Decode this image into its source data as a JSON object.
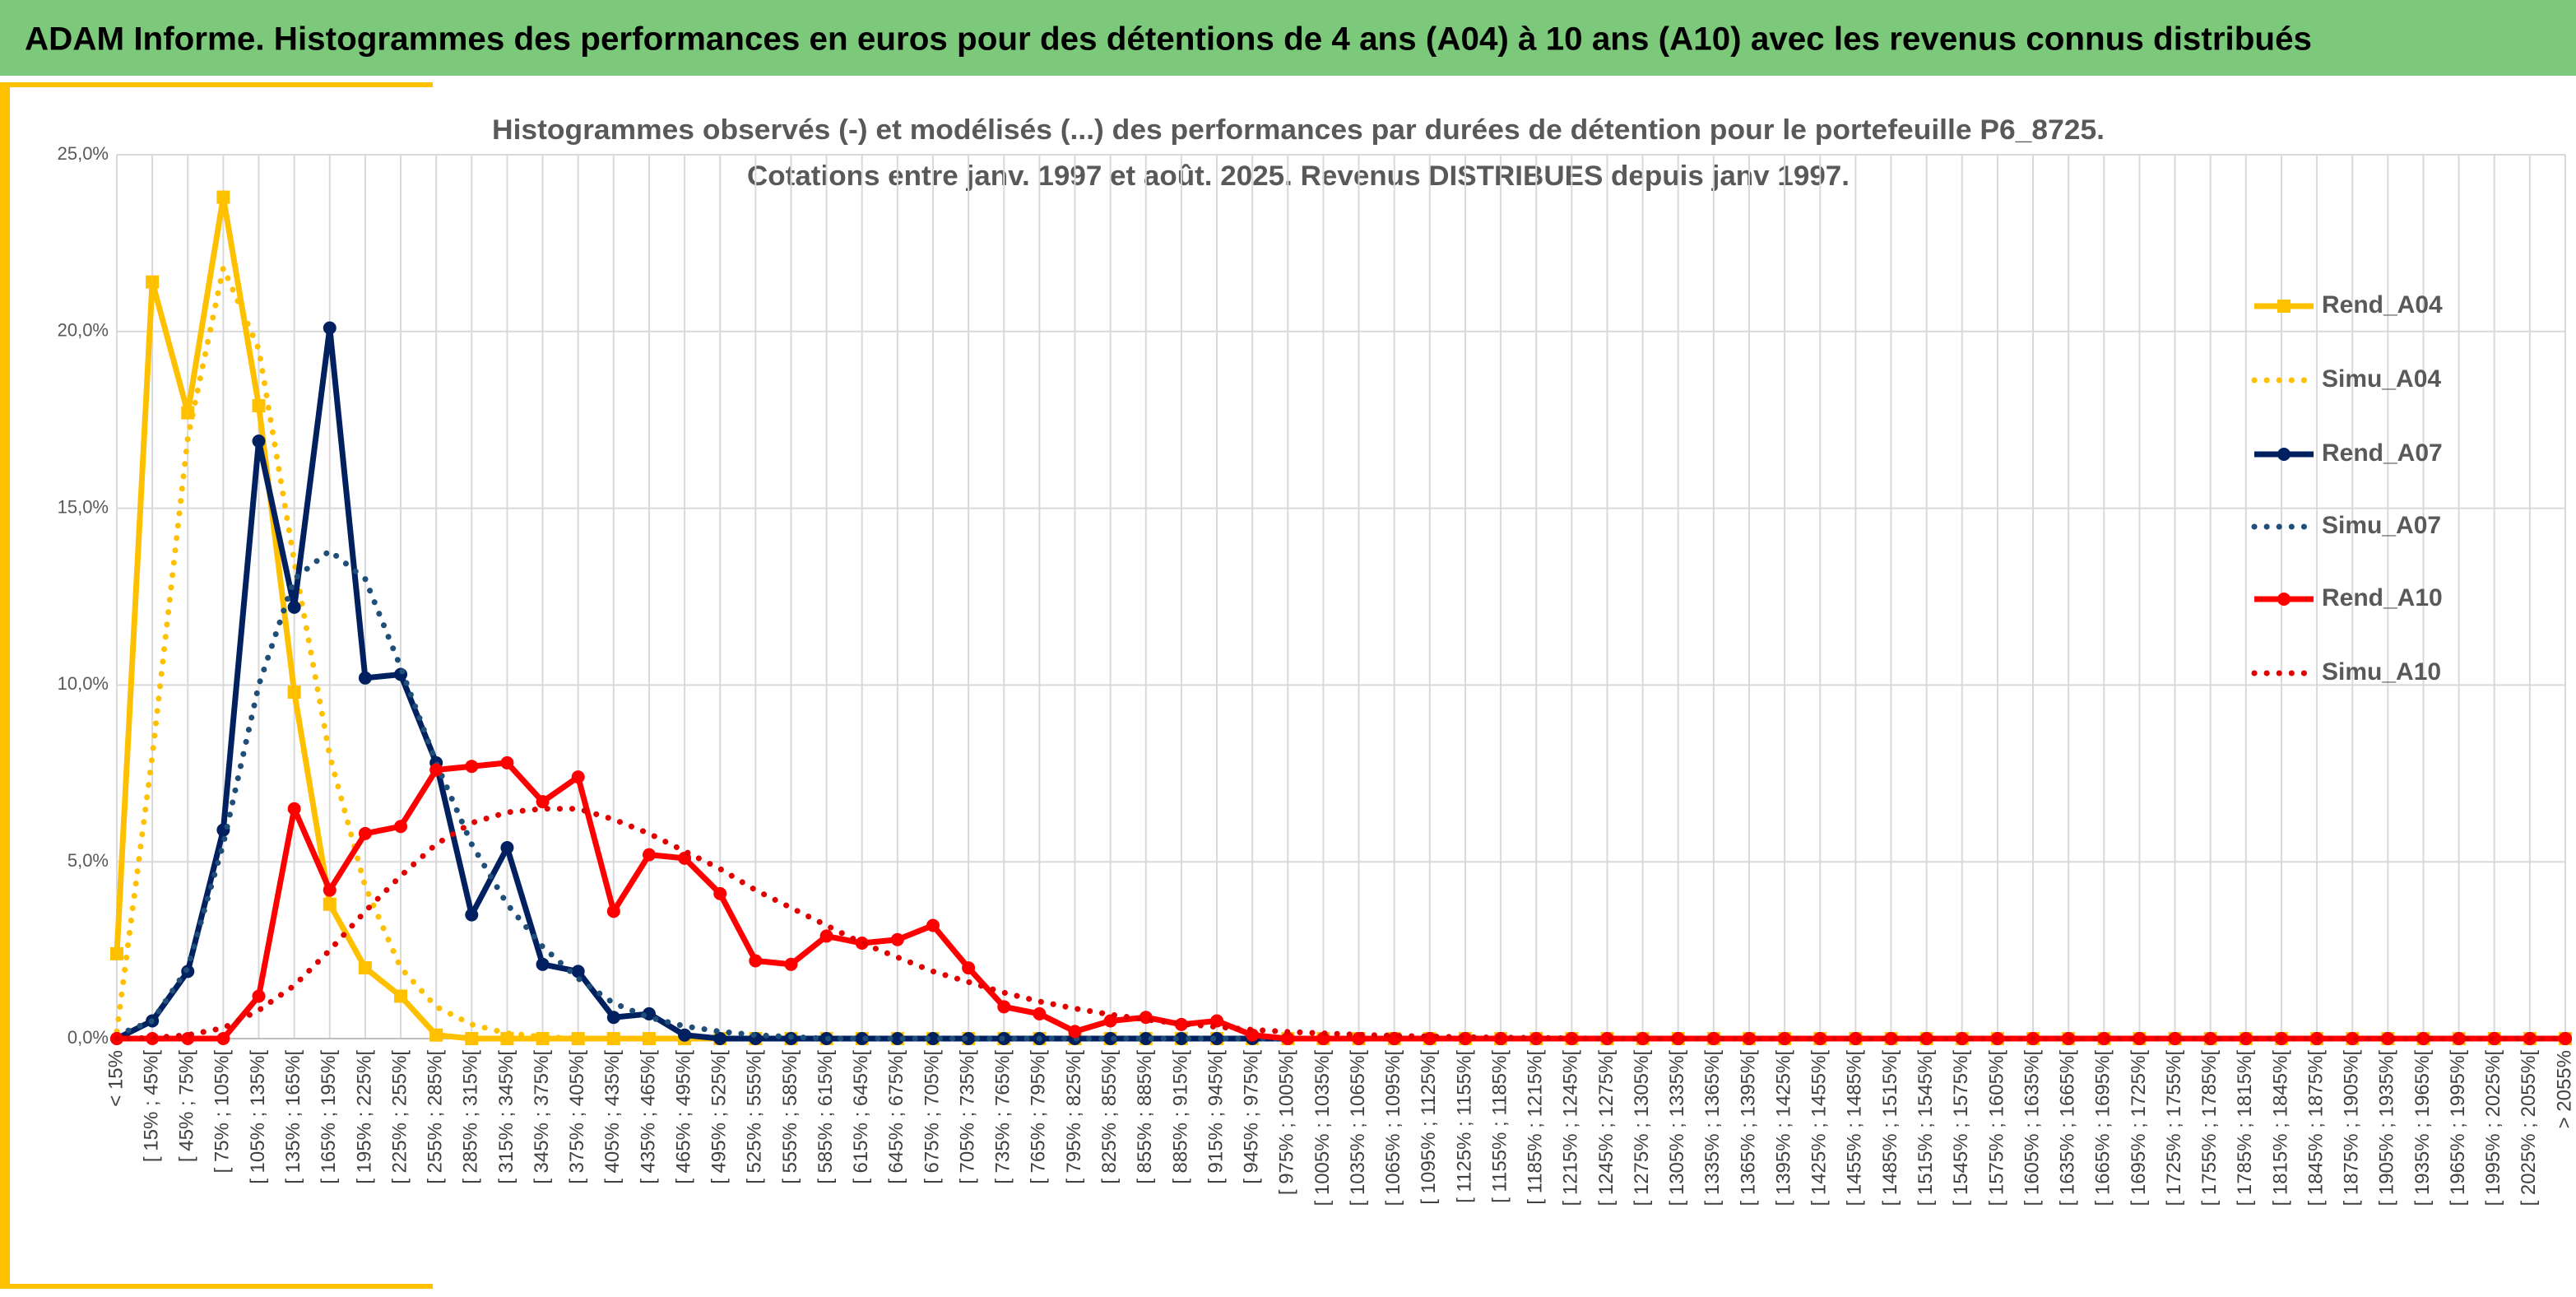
{
  "header_title": "ADAM Informe. Histogrammes des performances en euros pour des détentions de 4 ans (A04) à 10 ans (A10) avec les revenus connus distribués",
  "chart_data": {
    "type": "line",
    "title": [
      "Histogrammes observés (-) et modélisés (...) des performances par durées de détention pour le portefeuille P6_8725.",
      "Cotations entre janv. 1997 et août. 2025. Revenus DISTRIBUES depuis janv 1997."
    ],
    "categories": [
      "< 15%",
      "[ 15% ; 45%[",
      "[ 45% ; 75%[",
      "[ 75% ; 105%[",
      "[ 105% ; 135%[",
      "[ 135% ; 165%[",
      "[ 165% ; 195%[",
      "[ 195% ; 225%[",
      "[ 225% ; 255%[",
      "[ 255% ; 285%[",
      "[ 285% ; 315%[",
      "[ 315% ; 345%[",
      "[ 345% ; 375%[",
      "[ 375% ; 405%[",
      "[ 405% ; 435%[",
      "[ 435% ; 465%[",
      "[ 465% ; 495%[",
      "[ 495% ; 525%[",
      "[ 525% ; 555%[",
      "[ 555% ; 585%[",
      "[ 585% ; 615%[",
      "[ 615% ; 645%[",
      "[ 645% ; 675%[",
      "[ 675% ; 705%[",
      "[ 705% ; 735%[",
      "[ 735% ; 765%[",
      "[ 765% ; 795%[",
      "[ 795% ; 825%[",
      "[ 825% ; 855%[",
      "[ 855% ; 885%[",
      "[ 885% ; 915%[",
      "[ 915% ; 945%[",
      "[ 945% ; 975%[",
      "[ 975% ; 1005%[",
      "[ 1005% ; 1035%[",
      "[ 1035% ; 1065%[",
      "[ 1065% ; 1095%[",
      "[ 1095% ; 1125%[",
      "[ 1125% ; 1155%[",
      "[ 1155% ; 1185%[",
      "[ 1185% ; 1215%[",
      "[ 1215% ; 1245%[",
      "[ 1245% ; 1275%[",
      "[ 1275% ; 1305%[",
      "[ 1305% ; 1335%[",
      "[ 1335% ; 1365%[",
      "[ 1365% ; 1395%[",
      "[ 1395% ; 1425%[",
      "[ 1425% ; 1455%[",
      "[ 1455% ; 1485%[",
      "[ 1485% ; 1515%[",
      "[ 1515% ; 1545%[",
      "[ 1545% ; 1575%[",
      "[ 1575% ; 1605%[",
      "[ 1605% ; 1635%[",
      "[ 1635% ; 1665%[",
      "[ 1665% ; 1695%[",
      "[ 1695% ; 1725%[",
      "[ 1725% ; 1755%[",
      "[ 1755% ; 1785%[",
      "[ 1785% ; 1815%[",
      "[ 1815% ; 1845%[",
      "[ 1845% ; 1875%[",
      "[ 1875% ; 1905%[",
      "[ 1905% ; 1935%[",
      "[ 1935% ; 1965%[",
      "[ 1965% ; 1995%[",
      "[ 1995% ; 2025%[",
      "[ 2025% ; 2055%[",
      "> 2055%"
    ],
    "series": [
      {
        "name": "Rend_A04",
        "color": "#ffc000",
        "style": "solid",
        "marker": "square",
        "values": [
          2.4,
          21.4,
          17.7,
          23.8,
          17.9,
          9.8,
          3.8,
          2.0,
          1.2,
          0.1,
          0,
          0,
          0,
          0,
          0,
          0,
          0,
          0,
          0,
          0,
          0,
          0,
          0,
          0,
          0,
          0,
          0,
          0,
          0,
          0,
          0,
          0,
          0,
          0,
          0,
          0,
          0,
          0,
          0,
          0,
          0,
          0,
          0,
          0,
          0,
          0,
          0,
          0,
          0,
          0,
          0,
          0,
          0,
          0,
          0,
          0,
          0,
          0,
          0,
          0,
          0,
          0,
          0,
          0,
          0,
          0,
          0,
          0,
          0,
          0
        ]
      },
      {
        "name": "Simu_A04",
        "color": "#ffc000",
        "style": "dotted",
        "values": [
          0.2,
          8,
          17,
          21.8,
          19.5,
          13.5,
          8,
          4.3,
          2,
          0.9,
          0.4,
          0.15,
          0.05,
          0,
          0,
          0,
          0,
          0,
          0,
          0,
          0,
          0,
          0,
          0,
          0,
          0,
          0,
          0,
          0,
          0,
          0,
          0,
          0,
          0,
          0,
          0,
          0,
          0,
          0,
          0,
          0,
          0,
          0,
          0,
          0,
          0,
          0,
          0,
          0,
          0,
          0,
          0,
          0,
          0,
          0,
          0,
          0,
          0,
          0,
          0,
          0,
          0,
          0,
          0,
          0,
          0,
          0,
          0,
          0,
          0
        ]
      },
      {
        "name": "Rend_A07",
        "color": "#002060",
        "style": "solid",
        "marker": "circle",
        "values": [
          0,
          0.5,
          1.9,
          5.9,
          16.9,
          12.2,
          20.1,
          10.2,
          10.3,
          7.8,
          3.5,
          5.4,
          2.1,
          1.9,
          0.6,
          0.7,
          0.1,
          0,
          0,
          0,
          0,
          0,
          0,
          0,
          0,
          0,
          0,
          0,
          0,
          0,
          0,
          0,
          0,
          0,
          0,
          0,
          0,
          0,
          0,
          0,
          0,
          0,
          0,
          0,
          0,
          0,
          0,
          0,
          0,
          0,
          0,
          0,
          0,
          0,
          0,
          0,
          0,
          0,
          0,
          0,
          0,
          0,
          0,
          0,
          0,
          0,
          0,
          0,
          0,
          0
        ]
      },
      {
        "name": "Simu_A07",
        "color": "#1f4e79",
        "style": "dotted",
        "values": [
          0.1,
          0.5,
          2,
          5.5,
          10,
          13,
          13.8,
          13,
          10.5,
          7.8,
          5.5,
          3.8,
          2.6,
          1.7,
          1.0,
          0.6,
          0.35,
          0.2,
          0.1,
          0.05,
          0,
          0,
          0,
          0,
          0,
          0,
          0,
          0,
          0,
          0,
          0,
          0,
          0,
          0,
          0,
          0,
          0,
          0,
          0,
          0,
          0,
          0,
          0,
          0,
          0,
          0,
          0,
          0,
          0,
          0,
          0,
          0,
          0,
          0,
          0,
          0,
          0,
          0,
          0,
          0,
          0,
          0,
          0,
          0,
          0,
          0,
          0,
          0,
          0,
          0
        ]
      },
      {
        "name": "Rend_A10",
        "color": "#ff0000",
        "style": "solid",
        "marker": "circle",
        "values": [
          0,
          0,
          0,
          0,
          1.2,
          6.5,
          4.2,
          5.8,
          6.0,
          7.6,
          7.7,
          7.8,
          6.7,
          7.4,
          3.6,
          5.2,
          5.1,
          4.1,
          2.2,
          2.1,
          2.9,
          2.7,
          2.8,
          3.2,
          2.0,
          0.9,
          0.7,
          0.2,
          0.5,
          0.6,
          0.4,
          0.5,
          0.1,
          0,
          0,
          0,
          0,
          0,
          0,
          0,
          0,
          0,
          0,
          0,
          0,
          0,
          0,
          0,
          0,
          0,
          0,
          0,
          0,
          0,
          0,
          0,
          0,
          0,
          0,
          0,
          0,
          0,
          0,
          0,
          0,
          0,
          0,
          0,
          0,
          0
        ]
      },
      {
        "name": "Simu_A10",
        "color": "#e00000",
        "style": "dotted",
        "values": [
          0,
          0.02,
          0.1,
          0.3,
          0.8,
          1.5,
          2.5,
          3.6,
          4.6,
          5.5,
          6.1,
          6.4,
          6.5,
          6.5,
          6.2,
          5.8,
          5.3,
          4.8,
          4.2,
          3.7,
          3.2,
          2.7,
          2.3,
          1.9,
          1.6,
          1.3,
          1.05,
          0.85,
          0.68,
          0.54,
          0.42,
          0.33,
          0.25,
          0.19,
          0.15,
          0.11,
          0.08,
          0.06,
          0.04,
          0.03,
          0.02,
          0.01,
          0,
          0,
          0,
          0,
          0,
          0,
          0,
          0,
          0,
          0,
          0,
          0,
          0,
          0,
          0,
          0,
          0,
          0,
          0,
          0,
          0,
          0,
          0,
          0,
          0,
          0,
          0,
          0
        ]
      }
    ],
    "ylim": [
      0,
      25
    ],
    "yticks": [
      {
        "value": 0,
        "label": "0,0%"
      },
      {
        "value": 5,
        "label": "5,0%"
      },
      {
        "value": 10,
        "label": "10,0%"
      },
      {
        "value": 15,
        "label": "15,0%"
      },
      {
        "value": 20,
        "label": "20,0%"
      },
      {
        "value": 25,
        "label": "25,0%"
      }
    ],
    "grid": true,
    "legend": "right"
  }
}
